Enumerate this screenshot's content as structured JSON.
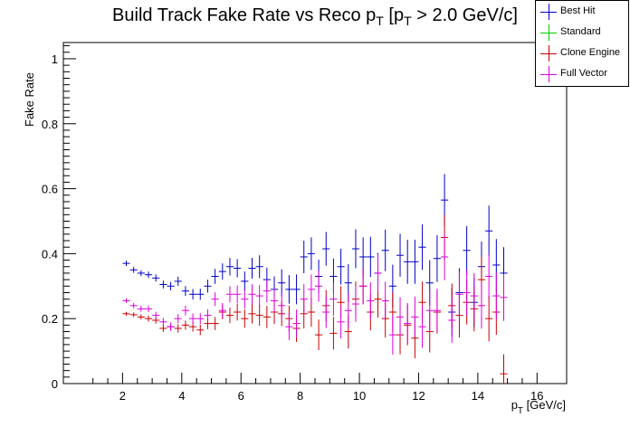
{
  "chart_data": {
    "type": "scatter",
    "title": "Build Track Fake Rate vs Reco p_T [p_T > 2.0 GeV/c]",
    "title_parts": {
      "main": "Build Track Fake Rate vs Reco p",
      "sub1": "T",
      "mid": " [p",
      "sub2": "T",
      "end": " > 2.0 GeV/c]"
    },
    "ylabel": "Fake Rate",
    "xlabel_parts": {
      "p": "p",
      "sub": "T",
      "unit": " [GeV/c]"
    },
    "xlim": [
      0,
      17
    ],
    "ylim": [
      0,
      1.05
    ],
    "x_ticks": [
      "2",
      "4",
      "6",
      "8",
      "10",
      "12",
      "14",
      "16"
    ],
    "y_ticks": [
      "0",
      "0.2",
      "0.4",
      "0.6",
      "0.8",
      "1"
    ],
    "grid": false,
    "legend_position": "top-right",
    "bin_half_width": 0.125,
    "series": [
      {
        "name": "Best Hit",
        "color": "#0000cc",
        "x": [
          2.125,
          2.375,
          2.625,
          2.875,
          3.125,
          3.375,
          3.625,
          3.875,
          4.125,
          4.375,
          4.625,
          4.875,
          5.125,
          5.375,
          5.625,
          5.875,
          6.125,
          6.375,
          6.625,
          6.875,
          7.125,
          7.375,
          7.625,
          7.875,
          8.125,
          8.375,
          8.625,
          8.875,
          9.125,
          9.375,
          9.625,
          9.875,
          10.125,
          10.375,
          10.625,
          10.875,
          11.125,
          11.375,
          11.625,
          11.875,
          12.125,
          12.375,
          12.625,
          12.875,
          13.125,
          13.375,
          13.625,
          13.875,
          14.125,
          14.375,
          14.625,
          14.875
        ],
        "y": [
          0.37,
          0.35,
          0.34,
          0.335,
          0.325,
          0.305,
          0.3,
          0.315,
          0.285,
          0.275,
          0.275,
          0.3,
          0.33,
          0.345,
          0.36,
          0.355,
          0.315,
          0.355,
          0.36,
          0.32,
          0.29,
          0.31,
          0.29,
          0.29,
          0.39,
          0.4,
          0.33,
          0.415,
          0.33,
          0.36,
          0.31,
          0.415,
          0.39,
          0.39,
          0.34,
          0.41,
          0.3,
          0.395,
          0.375,
          0.375,
          0.42,
          0.31,
          0.385,
          0.565,
          0.22,
          0.28,
          0.41,
          0.25,
          0.36,
          0.47,
          0.365,
          0.34
        ],
        "err": [
          0.008,
          0.009,
          0.009,
          0.01,
          0.011,
          0.012,
          0.013,
          0.014,
          0.015,
          0.016,
          0.017,
          0.02,
          0.023,
          0.025,
          0.027,
          0.028,
          0.03,
          0.032,
          0.035,
          0.037,
          0.04,
          0.042,
          0.044,
          0.046,
          0.05,
          0.05,
          0.052,
          0.052,
          0.055,
          0.055,
          0.058,
          0.06,
          0.06,
          0.062,
          0.062,
          0.064,
          0.066,
          0.066,
          0.068,
          0.068,
          0.07,
          0.07,
          0.072,
          0.08,
          0.075,
          0.075,
          0.075,
          0.076,
          0.077,
          0.078,
          0.08,
          0.08
        ]
      },
      {
        "name": "Standard",
        "color": "#00cc00",
        "x": [],
        "y": [],
        "err": []
      },
      {
        "name": "Clone Engine",
        "color": "#cc0000",
        "x": [
          2.125,
          2.375,
          2.625,
          2.875,
          3.125,
          3.375,
          3.625,
          3.875,
          4.125,
          4.375,
          4.625,
          4.875,
          5.125,
          5.375,
          5.625,
          5.875,
          6.125,
          6.375,
          6.625,
          6.875,
          7.125,
          7.375,
          7.625,
          7.875,
          8.125,
          8.375,
          8.625,
          8.875,
          9.125,
          9.375,
          9.625,
          9.875,
          10.125,
          10.375,
          10.625,
          10.875,
          11.125,
          11.375,
          11.625,
          11.875,
          12.125,
          12.375,
          12.625,
          12.875,
          13.125,
          13.375,
          13.625,
          13.875,
          14.125,
          14.375,
          14.625,
          14.875
        ],
        "y": [
          0.215,
          0.212,
          0.205,
          0.2,
          0.195,
          0.17,
          0.175,
          0.17,
          0.18,
          0.175,
          0.165,
          0.185,
          0.185,
          0.22,
          0.21,
          0.22,
          0.2,
          0.215,
          0.21,
          0.205,
          0.22,
          0.215,
          0.2,
          0.17,
          0.215,
          0.22,
          0.15,
          0.24,
          0.155,
          0.25,
          0.16,
          0.26,
          0.3,
          0.22,
          0.26,
          0.2,
          0.22,
          0.15,
          0.18,
          0.14,
          0.25,
          0.16,
          0.22,
          0.45,
          0.24,
          0.21,
          0.25,
          0.23,
          0.32,
          0.2,
          0.22,
          0.03
        ],
        "err": [
          0.006,
          0.007,
          0.008,
          0.009,
          0.01,
          0.011,
          0.012,
          0.013,
          0.014,
          0.015,
          0.016,
          0.018,
          0.02,
          0.022,
          0.024,
          0.026,
          0.028,
          0.03,
          0.032,
          0.034,
          0.036,
          0.038,
          0.04,
          0.042,
          0.045,
          0.045,
          0.047,
          0.048,
          0.05,
          0.05,
          0.052,
          0.054,
          0.055,
          0.056,
          0.057,
          0.058,
          0.06,
          0.06,
          0.062,
          0.062,
          0.064,
          0.064,
          0.066,
          0.07,
          0.068,
          0.068,
          0.068,
          0.069,
          0.07,
          0.07,
          0.07,
          0.06
        ]
      },
      {
        "name": "Full Vector",
        "color": "#dd00dd",
        "x": [
          2.125,
          2.375,
          2.625,
          2.875,
          3.125,
          3.375,
          3.625,
          3.875,
          4.125,
          4.375,
          4.625,
          4.875,
          5.125,
          5.375,
          5.625,
          5.875,
          6.125,
          6.375,
          6.625,
          6.875,
          7.125,
          7.375,
          7.625,
          7.875,
          8.125,
          8.375,
          8.625,
          8.875,
          9.125,
          9.375,
          9.625,
          9.875,
          10.125,
          10.375,
          10.625,
          10.875,
          11.125,
          11.375,
          11.625,
          11.875,
          12.125,
          12.375,
          12.625,
          12.875,
          13.125,
          13.375,
          13.625,
          13.875,
          14.125,
          14.375,
          14.625,
          14.875
        ],
        "y": [
          0.255,
          0.24,
          0.23,
          0.23,
          0.21,
          0.19,
          0.175,
          0.2,
          0.225,
          0.2,
          0.2,
          0.21,
          0.26,
          0.225,
          0.275,
          0.275,
          0.26,
          0.275,
          0.27,
          0.285,
          0.255,
          0.24,
          0.175,
          0.185,
          0.26,
          0.29,
          0.3,
          0.22,
          0.26,
          0.19,
          0.225,
          0.245,
          0.3,
          0.255,
          0.34,
          0.255,
          0.15,
          0.205,
          0.185,
          0.205,
          0.175,
          0.225,
          0.225,
          0.39,
          0.195,
          0.275,
          0.28,
          0.27,
          0.24,
          0.33,
          0.27,
          0.265
        ],
        "err": [
          0.007,
          0.008,
          0.009,
          0.01,
          0.011,
          0.012,
          0.013,
          0.014,
          0.015,
          0.016,
          0.017,
          0.019,
          0.021,
          0.023,
          0.025,
          0.027,
          0.029,
          0.031,
          0.033,
          0.035,
          0.037,
          0.039,
          0.041,
          0.043,
          0.046,
          0.046,
          0.048,
          0.049,
          0.051,
          0.051,
          0.053,
          0.055,
          0.056,
          0.057,
          0.058,
          0.059,
          0.061,
          0.061,
          0.063,
          0.063,
          0.065,
          0.065,
          0.067,
          0.072,
          0.069,
          0.069,
          0.07,
          0.07,
          0.071,
          0.072,
          0.072,
          0.072
        ]
      }
    ]
  }
}
